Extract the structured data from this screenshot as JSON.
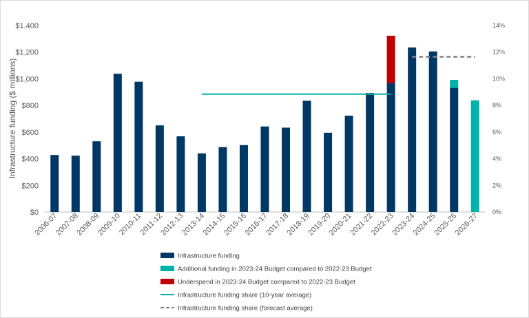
{
  "chart_data": {
    "type": "bar",
    "title": "",
    "ylabel": "Infrastructure funding ($ millions)",
    "y2label": "",
    "ylim": [
      0,
      1400
    ],
    "y2lim": [
      0,
      14
    ],
    "grid": false,
    "legend_position": "bottom",
    "y_ticks": [
      "$0",
      "$200",
      "$400",
      "$600",
      "$800",
      "$1,000",
      "$1,200",
      "$1,400"
    ],
    "y2_ticks": [
      "0%",
      "2%",
      "4%",
      "6%",
      "8%",
      "10%",
      "12%",
      "14%"
    ],
    "categories": [
      "2006-07",
      "2007-08",
      "2008-09",
      "2009-10",
      "2010-11",
      "2011-12",
      "2012-13",
      "2013-14",
      "2014-15",
      "2015-16",
      "2016-17",
      "2017-18",
      "2018-19",
      "2019-20",
      "2020-21",
      "2021-22",
      "2022-23",
      "2023-24",
      "2024-25",
      "2025-26",
      "2026-27"
    ],
    "series": [
      {
        "name": "Infrastructure funding",
        "color": "#003865",
        "values": [
          428,
          423,
          531,
          1038,
          978,
          650,
          568,
          440,
          487,
          502,
          642,
          633,
          835,
          595,
          723,
          893,
          968,
          1235,
          1205,
          932,
          0
        ]
      },
      {
        "name": "Additional funding in 2023-24 Budget compared to 2022-23 Budget",
        "color": "#00B2A9",
        "values": [
          0,
          0,
          0,
          0,
          0,
          0,
          0,
          0,
          0,
          0,
          0,
          0,
          0,
          0,
          0,
          0,
          0,
          0,
          0,
          60,
          838
        ]
      },
      {
        "name": "Underspend in 2023-24 Budget compared to 2022-23 Budget",
        "color": "#C00000",
        "values": [
          0,
          0,
          0,
          0,
          0,
          0,
          0,
          0,
          0,
          0,
          0,
          0,
          0,
          0,
          0,
          0,
          355,
          0,
          0,
          0,
          0
        ]
      }
    ],
    "lines": [
      {
        "name": "Infrastructure funding share (10-year average)",
        "color": "#00B2A9",
        "style": "solid",
        "axis": "right",
        "value": 8.85,
        "from": "2013-14",
        "to": "2022-23"
      },
      {
        "name": "Infrastructure funding share (forecast average)",
        "color": "#808080",
        "style": "dashed",
        "axis": "right",
        "value": 11.65,
        "from": "2023-24",
        "to": "2026-27"
      }
    ]
  }
}
